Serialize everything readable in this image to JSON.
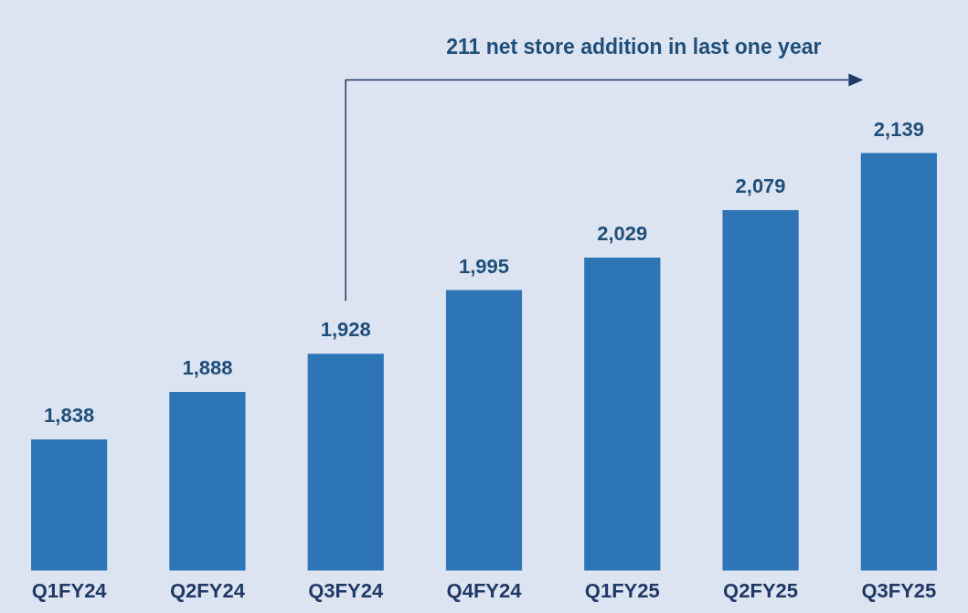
{
  "chart_data": {
    "type": "bar",
    "categories": [
      "Q1FY24",
      "Q2FY24",
      "Q3FY24",
      "Q4FY24",
      "Q1FY25",
      "Q2FY25",
      "Q3FY25"
    ],
    "values": [
      1838,
      1888,
      1928,
      1995,
      2029,
      2079,
      2139
    ],
    "color": "#2e75b6",
    "value_labels": [
      "1,838",
      "1,888",
      "1,928",
      "1,995",
      "2,029",
      "2,079",
      "2,139"
    ],
    "tick_labels": "x",
    "grid": false,
    "legend": false,
    "annotations": [
      "211 net store addition in last one year"
    ]
  }
}
